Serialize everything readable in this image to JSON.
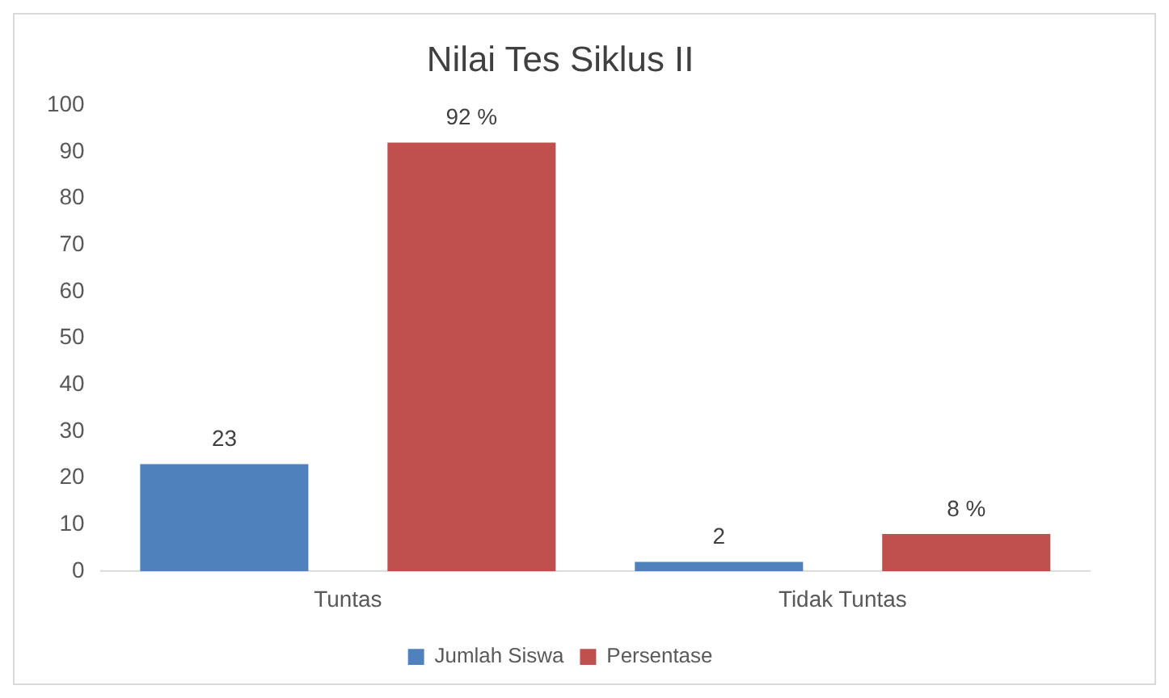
{
  "chart_data": {
    "type": "bar",
    "title": "Nilai Tes Siklus II",
    "categories": [
      "Tuntas",
      "Tidak Tuntas"
    ],
    "series": [
      {
        "name": "Jumlah Siswa",
        "color": "#4f81bd",
        "values": [
          23,
          2
        ],
        "value_labels": [
          "23",
          "2"
        ]
      },
      {
        "name": "Persentase",
        "color": "#c0504d",
        "values": [
          92,
          8
        ],
        "value_labels": [
          "92 %",
          "8 %"
        ]
      }
    ],
    "ylim": [
      0,
      100
    ],
    "yticks": [
      0,
      10,
      20,
      30,
      40,
      50,
      60,
      70,
      80,
      90,
      100
    ],
    "grid": false,
    "legend": "bottom"
  }
}
